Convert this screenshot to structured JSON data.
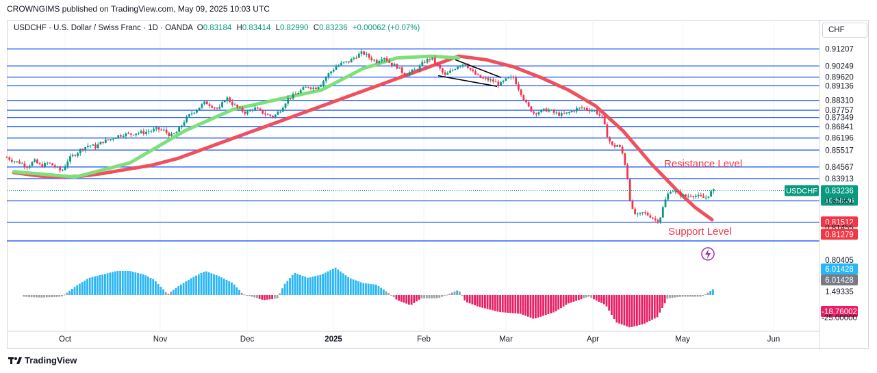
{
  "header": {
    "publisher_line": "CROWNGIMS published on TradingView.com, May 09, 2025 10:03 UTC"
  },
  "info_bar": {
    "symbol": "USDCHF · U.S. Dollar / Swiss Franc · 1D · OANDA",
    "open_label": "O",
    "open": "0.83184",
    "high_label": "H",
    "high": "0.83414",
    "low_label": "L",
    "low": "0.82990",
    "close_label": "C",
    "close": "0.83236",
    "change": "+0.00062 (+0.07%)"
  },
  "currency_box": "CHF",
  "footer": {
    "brand": "TradingView"
  },
  "colors": {
    "level_line": "#2962ff",
    "up_candle": "#089981",
    "down_candle": "#f23645",
    "rising_band": "#7ee07a",
    "falling_band": "#f0505c",
    "hist_pos": "#29b6f6",
    "hist_neg": "#e91e63",
    "hist_neutral": "#9e9e9e",
    "annotation": "#f23645"
  },
  "chart_data": {
    "type": "candlestick",
    "x_ticks": [
      "Oct",
      "Nov",
      "Dec",
      "2025",
      "Feb",
      "Mar",
      "Apr",
      "May",
      "Jun"
    ],
    "y_range": [
      0.8,
      0.916
    ],
    "horizontal_levels": [
      0.91207,
      0.90249,
      0.8962,
      0.89136,
      0.8831,
      0.87757,
      0.87349,
      0.86841,
      0.86196,
      0.85517,
      0.84567,
      0.83913,
      0.82661,
      0.81455,
      0.80405
    ],
    "right_axis_labels": [
      {
        "text": "0.91207",
        "value": 0.91207,
        "style": "plain"
      },
      {
        "text": "0.90249",
        "value": 0.90249,
        "style": "plain"
      },
      {
        "text": "0.89620",
        "value": 0.8962,
        "style": "plain"
      },
      {
        "text": "0.89136",
        "value": 0.89136,
        "style": "plain"
      },
      {
        "text": "0.88310",
        "value": 0.8831,
        "style": "plain"
      },
      {
        "text": "0.87757",
        "value": 0.87757,
        "style": "plain"
      },
      {
        "text": "0.87349",
        "value": 0.87349,
        "style": "plain"
      },
      {
        "text": "0.86841",
        "value": 0.86841,
        "style": "plain"
      },
      {
        "text": "0.86196",
        "value": 0.86196,
        "style": "plain"
      },
      {
        "text": "0.85517",
        "value": 0.85517,
        "style": "plain"
      },
      {
        "text": "0.84567",
        "value": 0.84567,
        "style": "plain"
      },
      {
        "text": "0.83913",
        "value": 0.83913,
        "style": "plain"
      },
      {
        "text": "0.82661",
        "value": 0.82661,
        "style": "plain"
      },
      {
        "text": "0.81512",
        "value": 0.81512,
        "style": "red"
      },
      {
        "text": "0.81455",
        "value": 0.81455,
        "style": "plain"
      },
      {
        "text": "0.81279",
        "value": 0.81279,
        "style": "red"
      },
      {
        "text": "0.80405",
        "value": 0.80405,
        "style": "plain"
      }
    ],
    "current_price": {
      "symbol": "USDCHF",
      "price": "0.83236",
      "value": 0.83236,
      "countdown": "10:56:36"
    },
    "indicator": {
      "axis_labels": [
        {
          "text": "6.01428",
          "value": 6.01428,
          "style": "blue"
        },
        {
          "text": "6.01428",
          "value": 6.01428,
          "style": "gray"
        },
        {
          "text": "1.49335",
          "value": 1.49335,
          "style": "plain"
        },
        {
          "text": "-18.76002",
          "value": -18.76002,
          "style": "pink"
        },
        {
          "text": "-25.00000",
          "value": -25.0,
          "style": "plain"
        }
      ],
      "range": [
        -25,
        20
      ]
    },
    "annotations": {
      "resistance": "Resistance Level",
      "support": "Support Level"
    },
    "price_path": [
      [
        0,
        0.851
      ],
      [
        10,
        0.849
      ],
      [
        20,
        0.848
      ],
      [
        30,
        0.846
      ],
      [
        40,
        0.849
      ],
      [
        50,
        0.846
      ],
      [
        60,
        0.848
      ],
      [
        70,
        0.846
      ],
      [
        80,
        0.843
      ],
      [
        90,
        0.85
      ],
      [
        100,
        0.853
      ],
      [
        110,
        0.856
      ],
      [
        120,
        0.858
      ],
      [
        130,
        0.857
      ],
      [
        140,
        0.86
      ],
      [
        150,
        0.861
      ],
      [
        160,
        0.863
      ],
      [
        170,
        0.864
      ],
      [
        180,
        0.864
      ],
      [
        190,
        0.865
      ],
      [
        200,
        0.865
      ],
      [
        210,
        0.866
      ],
      [
        220,
        0.867
      ],
      [
        230,
        0.866
      ],
      [
        240,
        0.863
      ],
      [
        250,
        0.866
      ],
      [
        260,
        0.872
      ],
      [
        270,
        0.876
      ],
      [
        280,
        0.879
      ],
      [
        290,
        0.882
      ],
      [
        300,
        0.88
      ],
      [
        310,
        0.878
      ],
      [
        320,
        0.885
      ],
      [
        330,
        0.881
      ],
      [
        340,
        0.878
      ],
      [
        350,
        0.876
      ],
      [
        360,
        0.879
      ],
      [
        370,
        0.877
      ],
      [
        380,
        0.875
      ],
      [
        390,
        0.874
      ],
      [
        400,
        0.878
      ],
      [
        410,
        0.884
      ],
      [
        420,
        0.886
      ],
      [
        430,
        0.889
      ],
      [
        440,
        0.891
      ],
      [
        450,
        0.89
      ],
      [
        460,
        0.893
      ],
      [
        470,
        0.898
      ],
      [
        480,
        0.902
      ],
      [
        490,
        0.904
      ],
      [
        500,
        0.905
      ],
      [
        510,
        0.908
      ],
      [
        520,
        0.91
      ],
      [
        530,
        0.907
      ],
      [
        540,
        0.905
      ],
      [
        550,
        0.908
      ],
      [
        560,
        0.904
      ],
      [
        570,
        0.902
      ],
      [
        580,
        0.898
      ],
      [
        590,
        0.899
      ],
      [
        600,
        0.901
      ],
      [
        610,
        0.905
      ],
      [
        620,
        0.907
      ],
      [
        630,
        0.902
      ],
      [
        640,
        0.897
      ],
      [
        650,
        0.9
      ],
      [
        660,
        0.903
      ],
      [
        670,
        0.904
      ],
      [
        680,
        0.899
      ],
      [
        690,
        0.896
      ],
      [
        700,
        0.895
      ],
      [
        710,
        0.894
      ],
      [
        720,
        0.892
      ],
      [
        730,
        0.895
      ],
      [
        740,
        0.896
      ],
      [
        750,
        0.888
      ],
      [
        760,
        0.88
      ],
      [
        770,
        0.876
      ],
      [
        780,
        0.877
      ],
      [
        790,
        0.878
      ],
      [
        800,
        0.876
      ],
      [
        810,
        0.875
      ],
      [
        820,
        0.876
      ],
      [
        830,
        0.878
      ],
      [
        840,
        0.879
      ],
      [
        850,
        0.878
      ],
      [
        860,
        0.877
      ],
      [
        870,
        0.873
      ],
      [
        878,
        0.862
      ],
      [
        885,
        0.857
      ],
      [
        892,
        0.858
      ],
      [
        898,
        0.855
      ],
      [
        905,
        0.844
      ],
      [
        912,
        0.822
      ],
      [
        920,
        0.818
      ],
      [
        930,
        0.82
      ],
      [
        940,
        0.818
      ],
      [
        950,
        0.815
      ],
      [
        955,
        0.818
      ],
      [
        960,
        0.825
      ],
      [
        965,
        0.83
      ],
      [
        970,
        0.833
      ],
      [
        980,
        0.831
      ],
      [
        990,
        0.829
      ],
      [
        1000,
        0.83
      ],
      [
        1010,
        0.829
      ],
      [
        1020,
        0.828
      ],
      [
        1030,
        0.832
      ],
      [
        1035,
        0.8324
      ]
    ],
    "rising_band": [
      [
        10,
        0.843
      ],
      [
        100,
        0.84
      ],
      [
        180,
        0.848
      ],
      [
        260,
        0.866
      ],
      [
        330,
        0.878
      ],
      [
        400,
        0.884
      ],
      [
        460,
        0.889
      ],
      [
        520,
        0.901
      ],
      [
        570,
        0.907
      ],
      [
        620,
        0.908
      ],
      [
        660,
        0.907
      ]
    ],
    "falling_band": [
      [
        10,
        0.8425
      ],
      [
        50,
        0.8405
      ],
      [
        80,
        0.84
      ],
      [
        110,
        0.8405
      ],
      [
        140,
        0.842
      ],
      [
        170,
        0.844
      ],
      [
        210,
        0.8465
      ],
      [
        250,
        0.8505
      ],
      [
        660,
        0.908
      ],
      [
        700,
        0.906
      ],
      [
        740,
        0.902
      ],
      [
        780,
        0.896
      ],
      [
        820,
        0.889
      ],
      [
        860,
        0.88
      ],
      [
        900,
        0.866
      ],
      [
        940,
        0.848
      ],
      [
        980,
        0.832
      ],
      [
        1005,
        0.823
      ],
      [
        1030,
        0.816
      ]
    ],
    "wedge_lines": [
      [
        [
          630,
          0.897
        ],
        [
          716,
          0.891
        ]
      ],
      [
        [
          655,
          0.906
        ],
        [
          722,
          0.896
        ]
      ]
    ],
    "histogram_profile": [
      [
        25,
        -1
      ],
      [
        50,
        -1.5
      ],
      [
        80,
        -1
      ],
      [
        100,
        5
      ],
      [
        120,
        10
      ],
      [
        140,
        12
      ],
      [
        160,
        14
      ],
      [
        180,
        14
      ],
      [
        200,
        12
      ],
      [
        215,
        9
      ],
      [
        235,
        0.5
      ],
      [
        250,
        5
      ],
      [
        270,
        10
      ],
      [
        290,
        14
      ],
      [
        310,
        11
      ],
      [
        330,
        7
      ],
      [
        345,
        0.5
      ],
      [
        375,
        -3
      ],
      [
        395,
        -2
      ],
      [
        405,
        6
      ],
      [
        420,
        13
      ],
      [
        440,
        10
      ],
      [
        460,
        12
      ],
      [
        480,
        16
      ],
      [
        500,
        10
      ],
      [
        520,
        7
      ],
      [
        540,
        6
      ],
      [
        560,
        0.5
      ],
      [
        570,
        -3
      ],
      [
        590,
        -6
      ],
      [
        605,
        -2
      ],
      [
        630,
        -2
      ],
      [
        660,
        3
      ],
      [
        670,
        -4
      ],
      [
        690,
        -7
      ],
      [
        720,
        -10
      ],
      [
        750,
        -11
      ],
      [
        770,
        -14
      ],
      [
        800,
        -10
      ],
      [
        820,
        -5
      ],
      [
        850,
        -1
      ],
      [
        875,
        -6
      ],
      [
        890,
        -16
      ],
      [
        910,
        -19
      ],
      [
        930,
        -17
      ],
      [
        950,
        -13
      ],
      [
        965,
        -2
      ],
      [
        985,
        -1
      ],
      [
        1015,
        -1
      ],
      [
        1034,
        4
      ]
    ]
  }
}
